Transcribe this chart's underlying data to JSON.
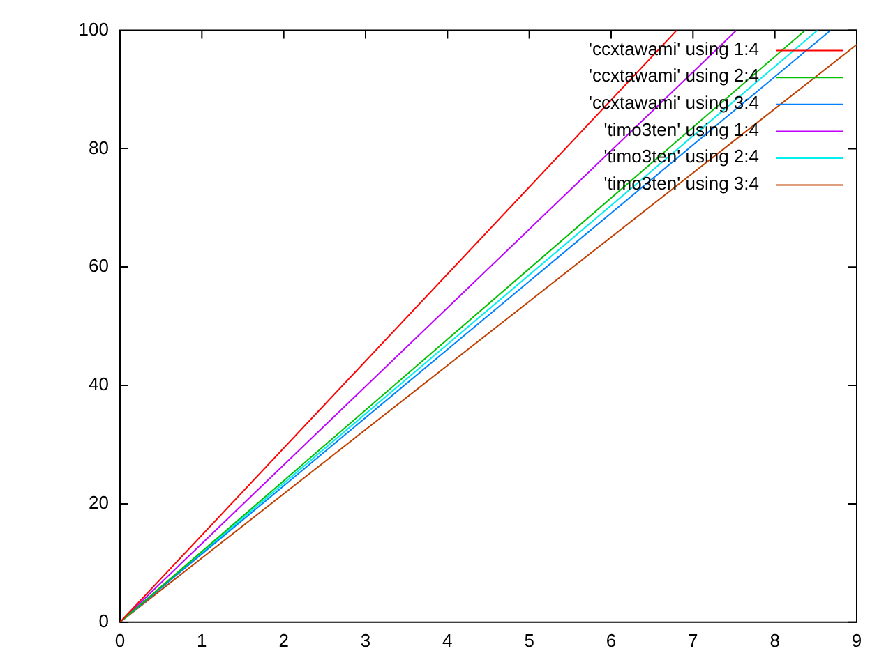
{
  "chart_data": {
    "type": "line",
    "xlim": [
      0,
      9
    ],
    "ylim": [
      0,
      100
    ],
    "xticks": [
      0,
      1,
      2,
      3,
      4,
      5,
      6,
      7,
      8,
      9
    ],
    "yticks": [
      0,
      20,
      40,
      60,
      80,
      100
    ],
    "grid": false,
    "legend": "top right",
    "marker": "none",
    "line_style": "solid",
    "series": [
      {
        "name": "'ccxtawami' using 1:4",
        "color": "#ff0000",
        "x": [
          0,
          6.8
        ],
        "values": [
          0,
          100
        ]
      },
      {
        "name": "'ccxtawami' using 2:4",
        "color": "#00c000",
        "x": [
          0,
          8.37
        ],
        "values": [
          0,
          100
        ]
      },
      {
        "name": "'ccxtawami' using 3:4",
        "color": "#0080ff",
        "x": [
          0,
          8.68
        ],
        "values": [
          0,
          100
        ]
      },
      {
        "name": "'timo3ten' using 1:4",
        "color": "#c000ff",
        "x": [
          0,
          7.53
        ],
        "values": [
          0,
          100
        ]
      },
      {
        "name": "'timo3ten' using 2:4",
        "color": "#00eeee",
        "x": [
          0,
          8.52
        ],
        "values": [
          0,
          100
        ]
      },
      {
        "name": "'timo3ten' using 3:4",
        "color": "#c04000",
        "x": [
          0,
          9
        ],
        "values": [
          0,
          97.6
        ]
      }
    ]
  }
}
